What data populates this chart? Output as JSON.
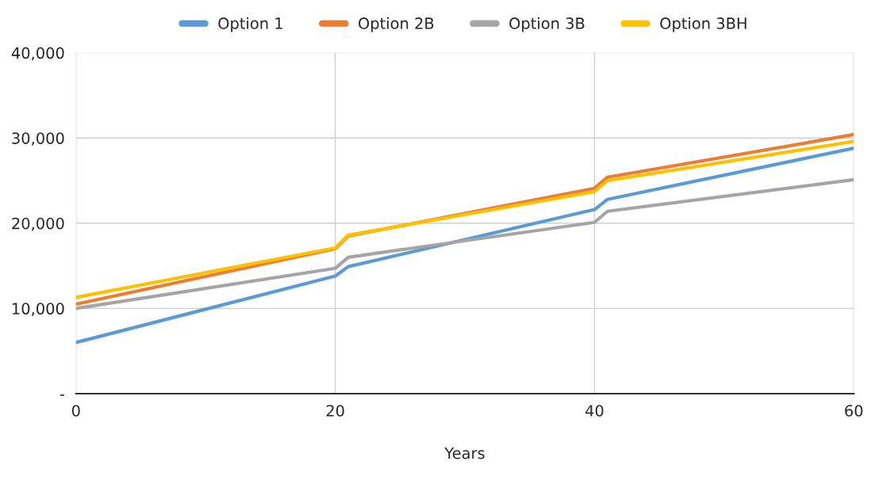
{
  "chart_data": {
    "type": "line",
    "xlabel": "Years",
    "xlim": [
      0,
      60
    ],
    "xticks": [
      0,
      20,
      40,
      60
    ],
    "ylim": [
      0,
      40000
    ],
    "yticks": [
      {
        "value": 0,
        "label": "-"
      },
      {
        "value": 10000,
        "label": "10,000"
      },
      {
        "value": 20000,
        "label": "20,000"
      },
      {
        "value": 30000,
        "label": "30,000"
      },
      {
        "value": 40000,
        "label": "40,000"
      }
    ],
    "grid": true,
    "legend": "top",
    "marker": "none",
    "line_style": "solid",
    "series": [
      {
        "name": "Option 1",
        "color": "#5b9bd5",
        "x": [
          0,
          20,
          21,
          40,
          41,
          60
        ],
        "values": [
          6000,
          13800,
          14900,
          21600,
          22800,
          28800
        ]
      },
      {
        "name": "Option 2B",
        "color": "#ed7d31",
        "x": [
          0,
          20,
          21,
          40,
          41,
          60
        ],
        "values": [
          10500,
          17000,
          18500,
          24100,
          25400,
          30400
        ]
      },
      {
        "name": "Option 3B",
        "color": "#a5a5a5",
        "x": [
          0,
          20,
          21,
          40,
          41,
          60
        ],
        "values": [
          10000,
          14700,
          16000,
          20100,
          21400,
          25100
        ]
      },
      {
        "name": "Option 3BH",
        "color": "#ffc000",
        "x": [
          0,
          20,
          21,
          40,
          41,
          60
        ],
        "values": [
          11300,
          17100,
          18600,
          23700,
          25000,
          29600
        ]
      }
    ]
  }
}
